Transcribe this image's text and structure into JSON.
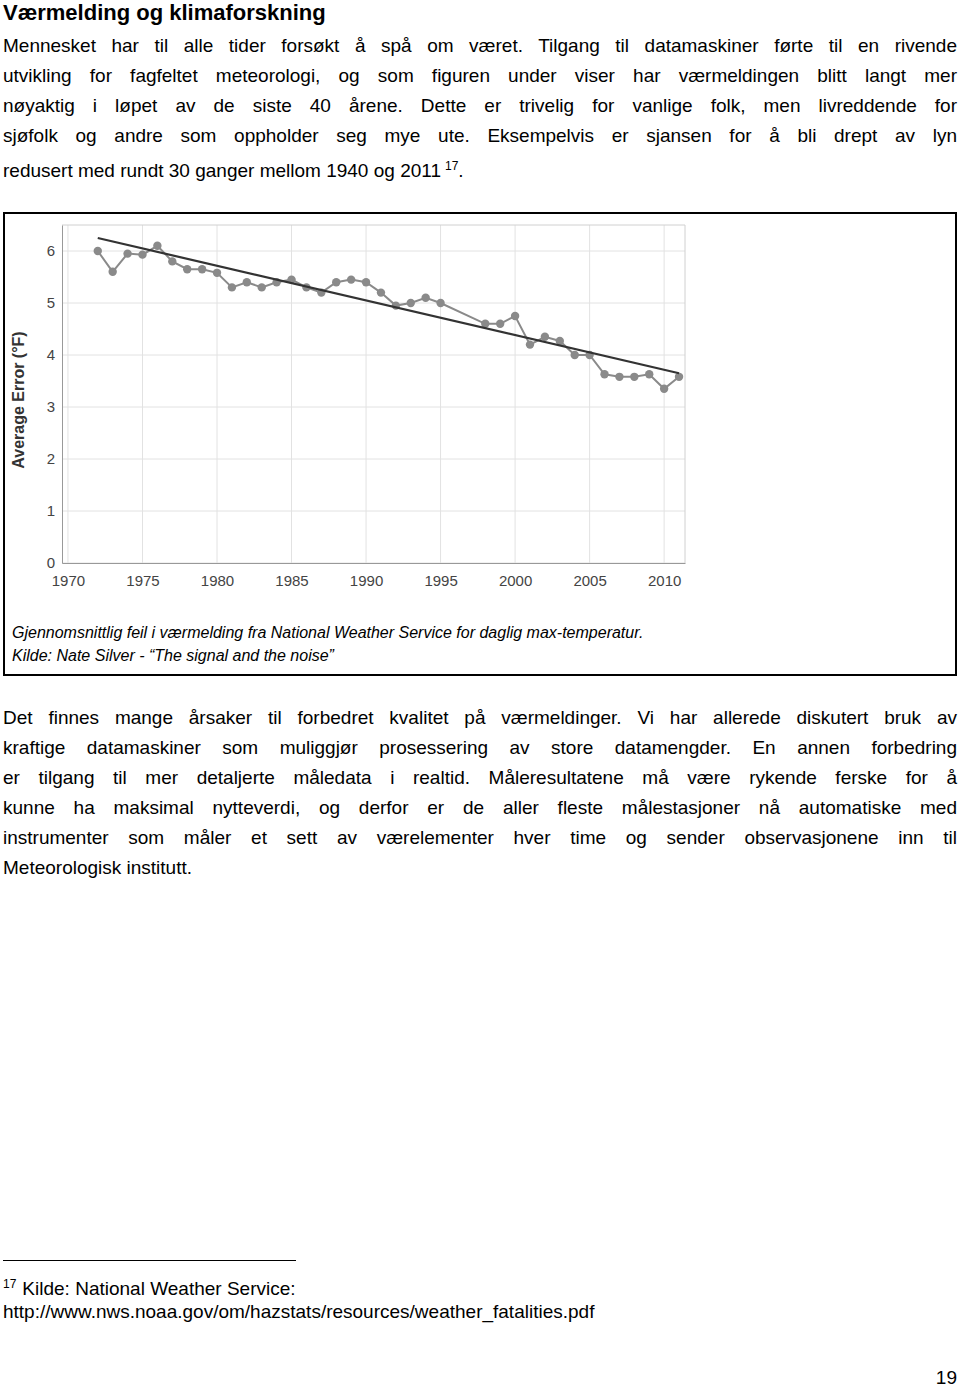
{
  "document": {
    "heading": "Værmelding og klimaforskning",
    "paragraphs": [
      {
        "lines": [
          "Mennesket har til alle tider forsøkt å spå om været. Tilgang til datamaskiner førte til en rivende",
          "utvikling for fagfeltet meteorologi, og som figuren under viser har værmeldingen blitt langt mer",
          "nøyaktig i løpet av de siste 40 årene. Dette er trivelig for vanlige folk, men livreddende for",
          "sjøfolk og andre som oppholder seg mye ute. Eksempelvis er sjansen for å bli drept av lyn",
          "redusert med rundt 30 ganger mellom 1940 og 2011"
        ],
        "footnote_ref": "17",
        "end": "."
      },
      {
        "lines": [
          "Det finnes mange årsaker til forbedret kvalitet på værmeldinger. Vi har allerede diskutert bruk av",
          "kraftige datamaskiner som muliggjør prosessering av store datamengder. En annen forbedring",
          "er tilgang til mer detaljerte måledata i realtid. Måleresultatene må være rykende ferske for å",
          "kunne ha maksimal nytteverdi, og derfor er de aller fleste målestasjoner nå automatiske med",
          "instrumenter som måler et sett av værelementer hver time og sender observasjonene inn til",
          "Meteorologisk institutt."
        ]
      }
    ],
    "figure": {
      "caption": "Gjennomsnittlig feil i værmelding fra National Weather Service for daglig max-temperatur.",
      "source": "Kilde: Nate Silver - “The signal and the noise”"
    },
    "footnote": {
      "number": "17",
      "lines": [
        "Kilde: National Weather Service:",
        "http://www.nws.noaa.gov/om/hazstats/resources/weather_fatalities.pdf"
      ]
    },
    "page_number": "19"
  },
  "chart_data": {
    "type": "line",
    "y_label": "Average Error (°F)",
    "xlim": [
      1969.6,
      2011.4
    ],
    "xticks": [
      1970,
      1975,
      1980,
      1985,
      1990,
      1995,
      2000,
      2005,
      2010
    ],
    "ylim": [
      0,
      6.5
    ],
    "yticks": [
      0,
      1,
      2,
      3,
      4,
      5,
      6
    ],
    "grid": true,
    "series": [
      {
        "x": [
          1972,
          1973,
          1974,
          1975,
          1976,
          1977,
          1978,
          1979,
          1980,
          1981,
          1982,
          1983,
          1984,
          1985,
          1986,
          1987,
          1988,
          1989,
          1990,
          1991,
          1992,
          1993,
          1994,
          1995,
          1998,
          1999,
          2000,
          2001,
          2002,
          2003,
          2004,
          2005,
          2006,
          2007,
          2008,
          2009,
          2010,
          2011
        ],
        "values": [
          6.0,
          5.6,
          5.95,
          5.93,
          6.1,
          5.8,
          5.65,
          5.65,
          5.58,
          5.3,
          5.4,
          5.3,
          5.4,
          5.45,
          5.3,
          5.2,
          5.4,
          5.45,
          5.4,
          5.2,
          4.95,
          5.0,
          5.1,
          5.0,
          4.6,
          4.6,
          4.75,
          4.2,
          4.35,
          4.27,
          4.0,
          4.0,
          3.63,
          3.58,
          3.58,
          3.63,
          3.35,
          3.58
        ],
        "color": "#8a8a8a",
        "marker": "circle"
      },
      {
        "x": [
          1972,
          2011
        ],
        "values": [
          6.25,
          3.65
        ],
        "color": "#333333",
        "marker": "none"
      }
    ]
  }
}
